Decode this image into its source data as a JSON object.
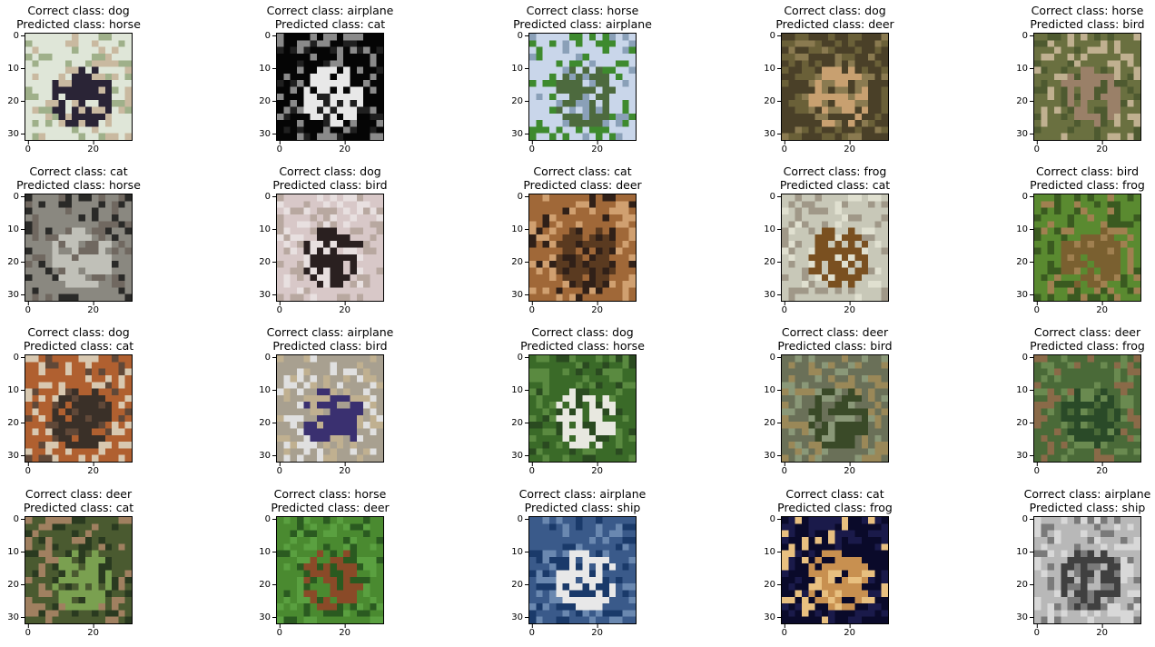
{
  "yticks": [
    "0",
    "10",
    "20",
    "30"
  ],
  "xticks": [
    "0",
    "20"
  ],
  "panels": [
    {
      "correct": "Correct class: dog",
      "predicted": "Predicted class: horse",
      "colors": [
        "#dfe6d8",
        "#2a2436",
        "#9fb08a",
        "#c9b9a0"
      ]
    },
    {
      "correct": "Correct class: airplane",
      "predicted": "Predicted class: cat",
      "colors": [
        "#050505",
        "#e8e8e8",
        "#8a8a8a",
        "#202020"
      ]
    },
    {
      "correct": "Correct class: horse",
      "predicted": "Predicted class: airplane",
      "colors": [
        "#c9d6ea",
        "#4d6a3e",
        "#3e8a2e",
        "#8aa0b8"
      ]
    },
    {
      "correct": "Correct class: dog",
      "predicted": "Predicted class: deer",
      "colors": [
        "#4a4028",
        "#c8a070",
        "#6a6038",
        "#8a7a50"
      ]
    },
    {
      "correct": "Correct class: horse",
      "predicted": "Predicted class: bird",
      "colors": [
        "#6a7040",
        "#9a8068",
        "#c0b090",
        "#4e5a30"
      ]
    },
    {
      "correct": "Correct class: cat",
      "predicted": "Predicted class: horse",
      "colors": [
        "#8a8880",
        "#c0c0b8",
        "#2a2a28",
        "#706860"
      ]
    },
    {
      "correct": "Correct class: dog",
      "predicted": "Predicted class: bird",
      "colors": [
        "#d8c8c8",
        "#2a2020",
        "#b8a8a0",
        "#e8e0e0"
      ]
    },
    {
      "correct": "Correct class: cat",
      "predicted": "Predicted class: deer",
      "colors": [
        "#a06838",
        "#5a3a20",
        "#d0a070",
        "#302018"
      ]
    },
    {
      "correct": "Correct class: frog",
      "predicted": "Predicted class: cat",
      "colors": [
        "#c8c8b8",
        "#7a5020",
        "#a09888",
        "#e0e0d0"
      ]
    },
    {
      "correct": "Correct class: bird",
      "predicted": "Predicted class: frog",
      "colors": [
        "#5a8a30",
        "#7a6030",
        "#3a5a20",
        "#a08050"
      ]
    },
    {
      "correct": "Correct class: dog",
      "predicted": "Predicted class: cat",
      "colors": [
        "#b06030",
        "#3a3028",
        "#d8c8b0",
        "#604838"
      ]
    },
    {
      "correct": "Correct class: airplane",
      "predicted": "Predicted class: bird",
      "colors": [
        "#a8a090",
        "#3a3070",
        "#e0e0e0",
        "#c0b090"
      ]
    },
    {
      "correct": "Correct class: dog",
      "predicted": "Predicted class: horse",
      "colors": [
        "#3a6a28",
        "#e8e8e0",
        "#5a8a40",
        "#2a4a20"
      ]
    },
    {
      "correct": "Correct class: deer",
      "predicted": "Predicted class: bird",
      "colors": [
        "#6a7058",
        "#3a4a28",
        "#9a8858",
        "#8a9878"
      ]
    },
    {
      "correct": "Correct class: deer",
      "predicted": "Predicted class: frog",
      "colors": [
        "#4a6a38",
        "#2a4a28",
        "#8a6a48",
        "#6a8a50"
      ]
    },
    {
      "correct": "Correct class: deer",
      "predicted": "Predicted class: cat",
      "colors": [
        "#4a5a30",
        "#7aa050",
        "#a08060",
        "#2a3a20"
      ]
    },
    {
      "correct": "Correct class: horse",
      "predicted": "Predicted class: deer",
      "colors": [
        "#4a8a30",
        "#8a4a28",
        "#5aa040",
        "#2a5a20"
      ]
    },
    {
      "correct": "Correct class: airplane",
      "predicted": "Predicted class: ship",
      "colors": [
        "#3a5a8a",
        "#e8e8e8",
        "#6a88b0",
        "#1a3a6a"
      ]
    },
    {
      "correct": "Correct class: cat",
      "predicted": "Predicted class: frog",
      "colors": [
        "#0a0a2a",
        "#c89050",
        "#1a1a4a",
        "#e8c080"
      ]
    },
    {
      "correct": "Correct class: airplane",
      "predicted": "Predicted class: ship",
      "colors": [
        "#b8b8b8",
        "#404040",
        "#d8d8d8",
        "#7a7a7a"
      ]
    }
  ]
}
